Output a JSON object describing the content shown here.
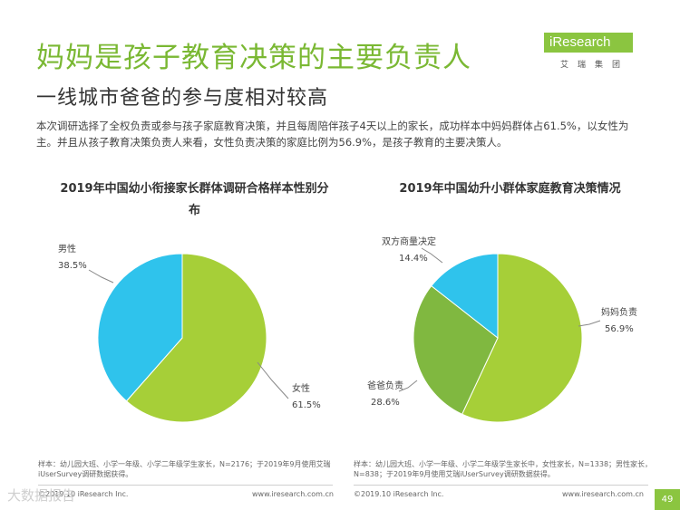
{
  "header": {
    "title": "妈妈是孩子教育决策的主要负责人",
    "subtitle": "一线城市爸爸的参与度相对较高",
    "logo_main": "iResearch",
    "logo_sub": "艾瑞集团"
  },
  "intro": "本次调研选择了全权负责或参与孩子家庭教育决策，并且每周陪伴孩子4天以上的家长，成功样本中妈妈群体占61.5%，以女性为主。并且从孩子教育决策负责人来看，女性负责决策的家庭比例为56.9%，是孩子教育的主要决策人。",
  "colors": {
    "green": "#a6cf38",
    "cyan": "#2fc3ec",
    "accent": "#7ab833",
    "brand": "#8bc540"
  },
  "chart_data": [
    {
      "type": "pie",
      "title": "2019年中国幼小衔接家长群体调研合格样本性别分布",
      "slices": [
        {
          "label": "女性",
          "value": 61.5,
          "display": "61.5%",
          "color": "#a6cf38"
        },
        {
          "label": "男性",
          "value": 38.5,
          "display": "38.5%",
          "color": "#2fc3ec"
        }
      ]
    },
    {
      "type": "pie",
      "title": "2019年中国幼升小群体家庭教育决策情况",
      "slices": [
        {
          "label": "妈妈负责",
          "value": 56.9,
          "display": "56.9%",
          "color": "#a6cf38"
        },
        {
          "label": "爸爸负责",
          "value": 28.6,
          "display": "28.6%",
          "color": "#80b840"
        },
        {
          "label": "双方商量决定",
          "value": 14.4,
          "display": "14.4%",
          "color": "#2fc3ec"
        }
      ]
    }
  ],
  "footer": {
    "note1": "样本：幼儿园大班、小学一年级、小学二年级学生家长，N=2176；于2019年9月使用艾瑞iUserSurvey调研数据获得。",
    "note2": "样本：幼儿园大班、小学一年级、小学二年级学生家长中，女性家长，N=1338；男性家长，N=838；于2019年9月使用艾瑞iUserSurvey调研数据获得。",
    "copyright": "©2019.10 iResearch Inc.",
    "website": "www.iresearch.com.cn",
    "page_number": "49",
    "watermark": "大数据报告"
  }
}
